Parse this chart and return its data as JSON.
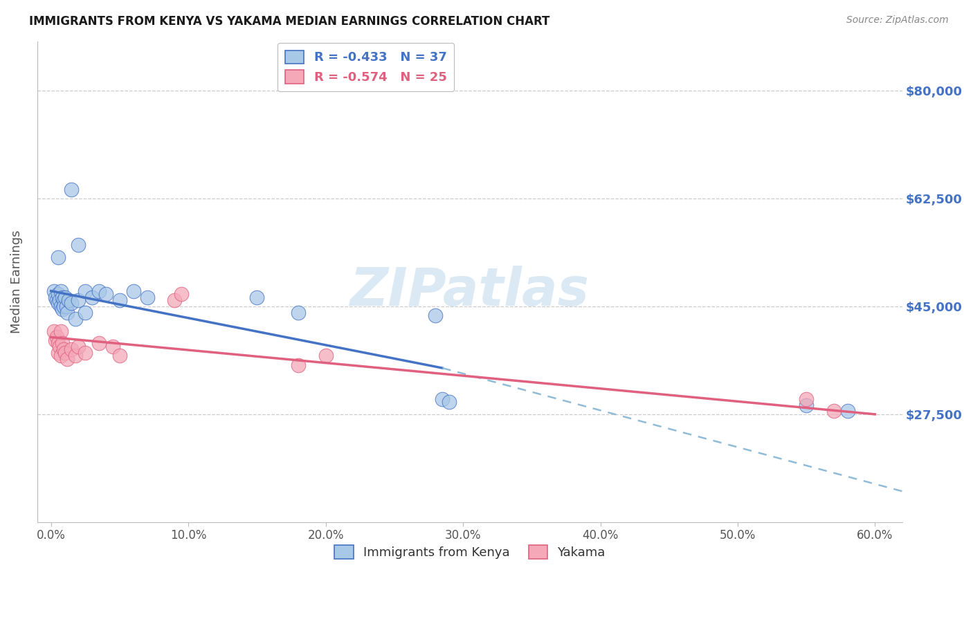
{
  "title": "IMMIGRANTS FROM KENYA VS YAKAMA MEDIAN EARNINGS CORRELATION CHART",
  "source": "Source: ZipAtlas.com",
  "ylabel": "Median Earnings",
  "x_tick_labels": [
    "0.0%",
    "10.0%",
    "20.0%",
    "30.0%",
    "40.0%",
    "50.0%",
    "60.0%"
  ],
  "x_tick_positions": [
    0.0,
    10.0,
    20.0,
    30.0,
    40.0,
    50.0,
    60.0
  ],
  "y_tick_labels": [
    "$27,500",
    "$45,000",
    "$62,500",
    "$80,000"
  ],
  "y_tick_positions": [
    27500,
    45000,
    62500,
    80000
  ],
  "ylim": [
    10000,
    88000
  ],
  "xlim": [
    -1.0,
    62.0
  ],
  "blue_R": -0.433,
  "blue_N": 37,
  "pink_R": -0.574,
  "pink_N": 25,
  "legend_label_blue": "Immigrants from Kenya",
  "legend_label_pink": "Yakama",
  "watermark": "ZIPatlas",
  "blue_color": "#a8c8e8",
  "pink_color": "#f4a8b8",
  "blue_scatter": [
    [
      0.2,
      47500
    ],
    [
      0.3,
      46500
    ],
    [
      0.4,
      46000
    ],
    [
      0.5,
      45500
    ],
    [
      0.5,
      47000
    ],
    [
      0.6,
      46000
    ],
    [
      0.7,
      45000
    ],
    [
      0.7,
      47500
    ],
    [
      0.8,
      46500
    ],
    [
      0.8,
      44500
    ],
    [
      0.9,
      46000
    ],
    [
      0.9,
      45000
    ],
    [
      1.0,
      46500
    ],
    [
      1.1,
      45000
    ],
    [
      1.2,
      44000
    ],
    [
      1.3,
      46000
    ],
    [
      1.5,
      45500
    ],
    [
      2.0,
      46000
    ],
    [
      2.5,
      47500
    ],
    [
      3.0,
      46500
    ],
    [
      3.5,
      47500
    ],
    [
      4.0,
      47000
    ],
    [
      5.0,
      46000
    ],
    [
      6.0,
      47500
    ],
    [
      7.0,
      46500
    ],
    [
      1.5,
      64000
    ],
    [
      2.0,
      55000
    ],
    [
      0.5,
      53000
    ],
    [
      1.8,
      43000
    ],
    [
      2.5,
      44000
    ],
    [
      15.0,
      46500
    ],
    [
      18.0,
      44000
    ],
    [
      28.0,
      43500
    ],
    [
      28.5,
      30000
    ],
    [
      29.0,
      29500
    ],
    [
      55.0,
      29000
    ],
    [
      58.0,
      28000
    ]
  ],
  "pink_scatter": [
    [
      0.2,
      41000
    ],
    [
      0.3,
      39500
    ],
    [
      0.4,
      40000
    ],
    [
      0.5,
      39000
    ],
    [
      0.5,
      37500
    ],
    [
      0.6,
      38500
    ],
    [
      0.7,
      37000
    ],
    [
      0.7,
      41000
    ],
    [
      0.8,
      39000
    ],
    [
      0.9,
      38000
    ],
    [
      1.0,
      37500
    ],
    [
      1.2,
      36500
    ],
    [
      1.5,
      38000
    ],
    [
      1.8,
      37000
    ],
    [
      2.0,
      38500
    ],
    [
      2.5,
      37500
    ],
    [
      3.5,
      39000
    ],
    [
      4.5,
      38500
    ],
    [
      5.0,
      37000
    ],
    [
      9.0,
      46000
    ],
    [
      9.5,
      47000
    ],
    [
      18.0,
      35500
    ],
    [
      20.0,
      37000
    ],
    [
      55.0,
      30000
    ],
    [
      57.0,
      28000
    ]
  ],
  "title_color": "#1a1a1a",
  "tick_label_color_y_right": "#4472c4",
  "grid_color": "#cccccc",
  "background_color": "#ffffff",
  "blue_line_color": "#4472c4",
  "pink_line_color": "#e06080",
  "dashed_ext_color": "#90bcd8",
  "blue_line_start_x": 0.0,
  "blue_line_end_solid_x": 28.5,
  "blue_line_end_dash_x": 62.0,
  "pink_line_start_x": 0.0,
  "pink_line_end_x": 60.0
}
